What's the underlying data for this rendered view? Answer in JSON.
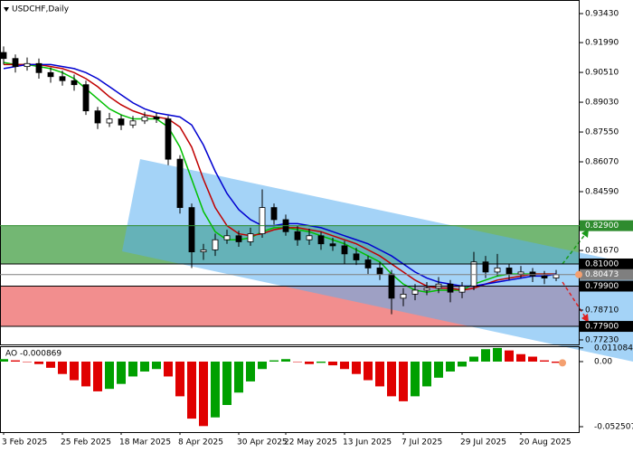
{
  "chart_data": {
    "type": "candlestick",
    "title": "USDCHF,Daily",
    "categories": [
      "3 Feb 2025",
      null,
      null,
      null,
      null,
      "25 Feb 2025",
      null,
      null,
      null,
      null,
      "18 Mar 2025",
      null,
      null,
      null,
      null,
      "8 Apr 2025",
      null,
      null,
      null,
      null,
      "30 Apr 2025",
      null,
      null,
      null,
      "22 May 2025",
      null,
      null,
      null,
      null,
      "13 Jun 2025",
      null,
      null,
      null,
      null,
      "7 Jul 2025",
      null,
      null,
      null,
      null,
      "29 Jul 2025",
      null,
      null,
      null,
      null,
      "20 Aug 2025",
      null,
      null,
      null
    ],
    "open": [
      0.915,
      0.912,
      0.908,
      0.9095,
      0.905,
      0.903,
      0.901,
      0.899,
      0.886,
      0.88,
      0.882,
      0.879,
      0.881,
      0.883,
      0.882,
      0.862,
      0.838,
      0.816,
      0.817,
      0.822,
      0.824,
      0.821,
      0.825,
      0.838,
      0.832,
      0.826,
      0.822,
      0.824,
      0.82,
      0.819,
      0.815,
      0.812,
      0.808,
      0.805,
      0.793,
      0.795,
      0.797,
      0.798,
      0.8,
      0.796,
      0.799,
      0.811,
      0.806,
      0.808,
      0.805,
      0.806,
      0.804,
      0.803
    ],
    "high": [
      0.918,
      0.914,
      0.9125,
      0.912,
      0.9075,
      0.906,
      0.904,
      0.901,
      0.888,
      0.885,
      0.884,
      0.8835,
      0.8855,
      0.885,
      0.8835,
      0.864,
      0.84,
      0.82,
      0.825,
      0.827,
      0.8265,
      0.828,
      0.847,
      0.84,
      0.8345,
      0.829,
      0.8275,
      0.826,
      0.823,
      0.8215,
      0.818,
      0.814,
      0.811,
      0.807,
      0.798,
      0.8,
      0.801,
      0.8035,
      0.802,
      0.801,
      0.816,
      0.814,
      0.815,
      0.81,
      0.809,
      0.808,
      0.8065,
      0.807
    ],
    "low": [
      0.909,
      0.905,
      0.906,
      0.902,
      0.9,
      0.8985,
      0.896,
      0.884,
      0.877,
      0.878,
      0.8765,
      0.8775,
      0.8795,
      0.88,
      0.859,
      0.835,
      0.808,
      0.812,
      0.814,
      0.82,
      0.8185,
      0.819,
      0.823,
      0.8295,
      0.824,
      0.819,
      0.8195,
      0.817,
      0.8165,
      0.81,
      0.8095,
      0.805,
      0.802,
      0.785,
      0.789,
      0.792,
      0.7945,
      0.7955,
      0.791,
      0.793,
      0.797,
      0.803,
      0.804,
      0.802,
      0.803,
      0.801,
      0.8,
      0.8015
    ],
    "close": [
      0.912,
      0.908,
      0.9095,
      0.905,
      0.903,
      0.901,
      0.899,
      0.886,
      0.88,
      0.882,
      0.879,
      0.881,
      0.883,
      0.882,
      0.862,
      0.838,
      0.816,
      0.817,
      0.822,
      0.824,
      0.821,
      0.825,
      0.838,
      0.832,
      0.826,
      0.822,
      0.824,
      0.82,
      0.819,
      0.815,
      0.812,
      0.808,
      0.805,
      0.793,
      0.795,
      0.797,
      0.798,
      0.8,
      0.796,
      0.799,
      0.811,
      0.806,
      0.808,
      0.805,
      0.806,
      0.804,
      0.803,
      0.8047
    ],
    "bull_color": "#ffffff",
    "bear_color": "#000000",
    "series": [
      {
        "color": "#00c000",
        "values": [
          0.91,
          0.909,
          0.909,
          0.908,
          0.907,
          0.905,
          0.902,
          0.897,
          0.892,
          0.887,
          0.884,
          0.882,
          0.882,
          0.882,
          0.878,
          0.868,
          0.852,
          0.836,
          0.826,
          0.822,
          0.822,
          0.823,
          0.826,
          0.828,
          0.828,
          0.827,
          0.826,
          0.824,
          0.822,
          0.82,
          0.817,
          0.814,
          0.811,
          0.805,
          0.8,
          0.797,
          0.796,
          0.797,
          0.797,
          0.797,
          0.8,
          0.802,
          0.804,
          0.805,
          0.805,
          0.805,
          0.805,
          0.805
        ]
      },
      {
        "color": "#c00000",
        "values": [
          0.909,
          0.909,
          0.909,
          0.909,
          0.908,
          0.907,
          0.905,
          0.902,
          0.898,
          0.893,
          0.889,
          0.886,
          0.884,
          0.883,
          0.882,
          0.878,
          0.868,
          0.852,
          0.838,
          0.829,
          0.825,
          0.824,
          0.825,
          0.827,
          0.828,
          0.828,
          0.827,
          0.826,
          0.824,
          0.822,
          0.82,
          0.817,
          0.814,
          0.81,
          0.806,
          0.802,
          0.799,
          0.798,
          0.798,
          0.797,
          0.798,
          0.8,
          0.802,
          0.803,
          0.804,
          0.805,
          0.805,
          0.805
        ]
      },
      {
        "color": "#0000d0",
        "values": [
          0.907,
          0.908,
          0.909,
          0.909,
          0.909,
          0.908,
          0.907,
          0.905,
          0.902,
          0.898,
          0.894,
          0.89,
          0.887,
          0.885,
          0.884,
          0.883,
          0.879,
          0.869,
          0.856,
          0.845,
          0.837,
          0.832,
          0.829,
          0.829,
          0.83,
          0.83,
          0.829,
          0.828,
          0.826,
          0.824,
          0.822,
          0.82,
          0.817,
          0.814,
          0.81,
          0.806,
          0.803,
          0.801,
          0.8,
          0.799,
          0.799,
          0.8,
          0.801,
          0.802,
          0.803,
          0.804,
          0.804,
          0.805
        ]
      }
    ],
    "ylim": [
      0.7696,
      0.9388
    ],
    "yticks": [
      {
        "value": 0.9343,
        "label": "0.93430"
      },
      {
        "value": 0.9199,
        "label": "0.91990"
      },
      {
        "value": 0.9051,
        "label": "0.90510"
      },
      {
        "value": 0.8903,
        "label": "0.89030"
      },
      {
        "value": 0.8755,
        "label": "0.87550"
      },
      {
        "value": 0.8607,
        "label": "0.86070"
      },
      {
        "value": 0.8459,
        "label": "0.84590"
      },
      {
        "value": 0.8167,
        "label": "0.81670"
      },
      {
        "value": 0.7871,
        "label": "0.78710"
      },
      {
        "value": 0.7723,
        "label": "0.77230"
      }
    ],
    "levels": [
      {
        "value": 0.829,
        "label": "0.82900",
        "color": "#2e8b2e"
      },
      {
        "value": 0.81,
        "label": "0.81000",
        "color": "#000000"
      },
      {
        "value": 0.80473,
        "label": "0.80473",
        "color": "#7f7f7f"
      },
      {
        "value": 0.799,
        "label": "0.79900",
        "color": "#000000"
      },
      {
        "value": 0.779,
        "label": "0.77900",
        "color": "#000000"
      }
    ],
    "zones": [
      {
        "low": 0.81,
        "high": 0.829,
        "color": "#5aaa5a"
      },
      {
        "low": 0.779,
        "high": 0.799,
        "color": "#f07a7a"
      }
    ],
    "ao": {
      "label": "AO -0.000869",
      "rise_color": "#00a000",
      "fall_color": "#e00000",
      "values": [
        0.002,
        0.001,
        0.0,
        -0.002,
        -0.005,
        -0.01,
        -0.015,
        -0.02,
        -0.024,
        -0.022,
        -0.018,
        -0.012,
        -0.008,
        -0.006,
        -0.012,
        -0.028,
        -0.046,
        -0.052,
        -0.045,
        -0.035,
        -0.025,
        -0.016,
        -0.006,
        0.001,
        0.002,
        0.0,
        -0.002,
        -0.001,
        -0.003,
        -0.006,
        -0.01,
        -0.015,
        -0.02,
        -0.028,
        -0.032,
        -0.028,
        -0.02,
        -0.013,
        -0.008,
        -0.004,
        0.004,
        0.01,
        0.011,
        0.009,
        0.006,
        0.004,
        0.001,
        -0.001
      ],
      "ylim": [
        -0.05688,
        0.01166
      ],
      "yticks": [
        0.011084,
        {
          "value": 0,
          "label": "0.00"
        },
        -0.052507
      ]
    }
  }
}
